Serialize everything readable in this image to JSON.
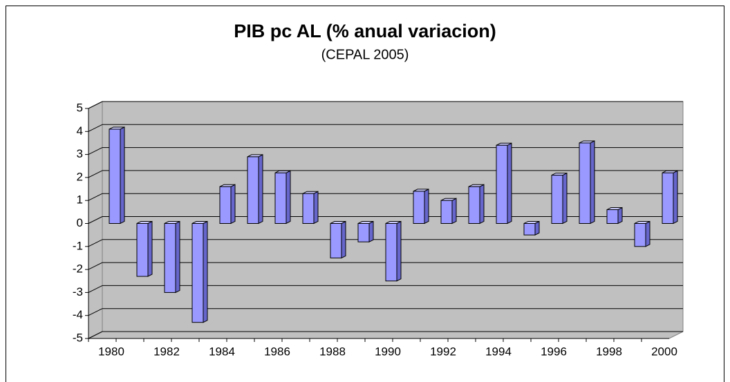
{
  "chart_data": {
    "type": "bar",
    "title": "PIB pc AL (% anual variacion)",
    "subtitle": "(CEPAL 2005)",
    "categories": [
      "1980",
      null,
      "1982",
      null,
      "1984",
      null,
      "1986",
      null,
      "1988",
      null,
      "1990",
      null,
      "1992",
      null,
      "1994",
      null,
      "1996",
      null,
      "1998",
      null,
      "2000"
    ],
    "values": [
      4.1,
      -2.3,
      -3.0,
      -4.3,
      1.6,
      2.9,
      2.2,
      1.3,
      -1.5,
      -0.8,
      -2.5,
      1.4,
      1.0,
      1.6,
      3.4,
      -0.5,
      2.1,
      3.5,
      0.6,
      -1.0,
      2.2
    ],
    "color": "#9999ff",
    "ylim": [
      -5,
      5
    ],
    "yticks": [
      -5,
      -4,
      -3,
      -2,
      -1,
      0,
      1,
      2,
      3,
      4,
      5
    ],
    "grid": true
  }
}
